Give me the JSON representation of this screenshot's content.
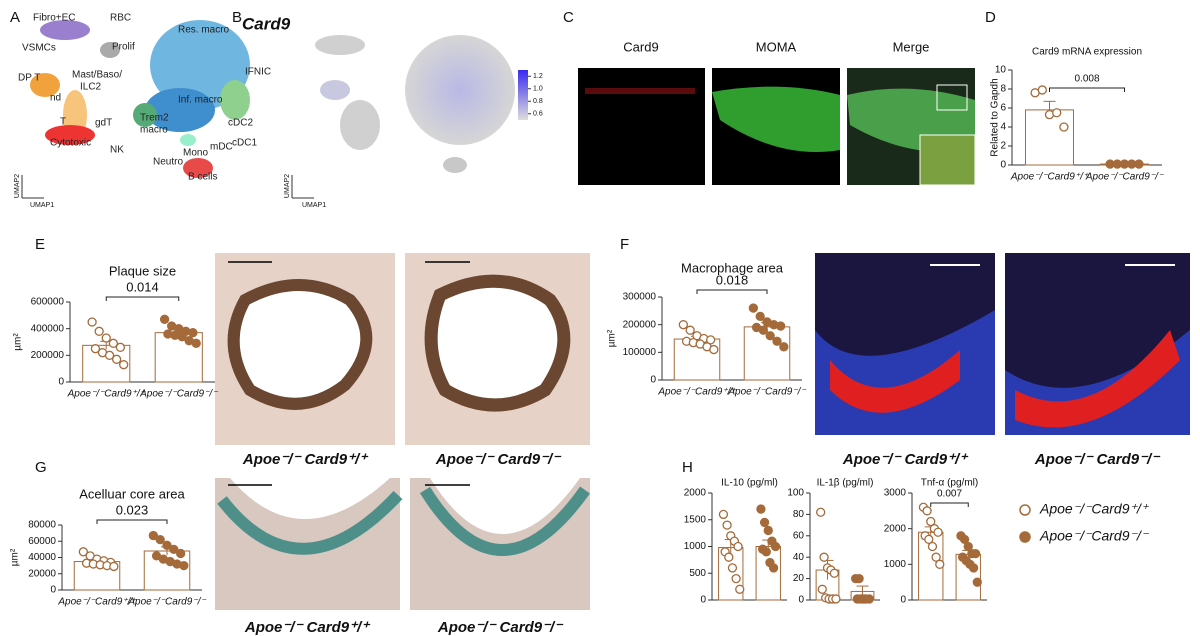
{
  "panels": {
    "A": {
      "letter": "A",
      "clusters": [
        "Fibro+EC",
        "VSMCs",
        "RBC",
        "Res. macro",
        "Prolif",
        "IFNIC",
        "DP T",
        "Mast/Baso/",
        "ILC2",
        "Inf. macro",
        "nd",
        "Trem2",
        "macro",
        "gdT",
        "cDC2",
        "T",
        "cDC1",
        "mDC",
        "Mono",
        "Neutro",
        "Cytotoxic",
        "NK",
        "B cells"
      ],
      "axis_x": "UMAP1",
      "axis_y": "UMAP2"
    },
    "B": {
      "letter": "B",
      "title": "Card9",
      "axis_x": "UMAP1",
      "axis_y": "UMAP2",
      "colorbar_lim": [
        0.5,
        1.3
      ],
      "colorbar_ticks": [
        1.2,
        {
          "value": 1,
          "label": "1.0"
        },
        0.8,
        0.6
      ]
    },
    "C": {
      "letter": "C",
      "channels": [
        "Card9",
        "MOMA",
        "Merge"
      ]
    },
    "D": {
      "letter": "D"
    },
    "E": {
      "letter": "E",
      "images": [
        "Apoe⁻/⁻ Card9⁺/⁺",
        "Apoe⁻/⁻ Card9⁻/⁻"
      ]
    },
    "F": {
      "letter": "F",
      "images": [
        "Apoe⁻/⁻ Card9⁺/⁺",
        "Apoe⁻/⁻ Card9⁻/⁻"
      ]
    },
    "G": {
      "letter": "G",
      "images": [
        "Apoe⁻/⁻ Card9⁺/⁺",
        "Apoe⁻/⁻ Card9⁻/⁻"
      ]
    },
    "H": {
      "letter": "H",
      "legend": [
        {
          "name": "Apoe⁻/⁻Card9⁺/⁺",
          "fill": "none",
          "color": "#a46a3a"
        },
        {
          "name": "Apoe⁻/⁻Card9⁻/⁻",
          "fill": "#a46a3a",
          "color": "#a46a3a"
        }
      ]
    }
  },
  "chart_data": [
    {
      "type": "bar",
      "title": "Card9 mRNA expression",
      "ylabel": "Related to Gapdh",
      "categories": [
        "Apoe⁻/⁻Card9⁺/⁺",
        "Apoe⁻/⁻Card9⁻/⁻"
      ],
      "color": "#a46a3a",
      "fills": [
        "none",
        "#a46a3a"
      ],
      "values": [
        5.8,
        0.1
      ],
      "errors": [
        0.9,
        0.05
      ],
      "points": [
        [
          7.6,
          7.9,
          5.3,
          5.5,
          4.0
        ],
        [
          0.1,
          0.1,
          0.1,
          0.1,
          0.1
        ]
      ],
      "pvalue": "0.008",
      "ylim": [
        0,
        10
      ],
      "yticks": [
        0,
        2,
        4,
        6,
        8,
        10
      ]
    },
    {
      "type": "bar",
      "title": "Plaque size",
      "ylabel": "µm²",
      "categories": [
        "Apoe⁻/⁻Card9⁺/⁺",
        "Apoe⁻/⁻Card9⁻/⁻"
      ],
      "color": "#a46a3a",
      "fills": [
        "none",
        "#a46a3a"
      ],
      "values": [
        275000,
        370000
      ],
      "errors": [
        30000,
        22000
      ],
      "points": [
        [
          450000,
          380000,
          330000,
          290000,
          260000,
          250000,
          220000,
          200000,
          170000,
          130000
        ],
        [
          470000,
          420000,
          400000,
          380000,
          370000,
          360000,
          350000,
          340000,
          310000,
          290000
        ]
      ],
      "pvalue": "0.014",
      "ylim": [
        0,
        600000
      ],
      "yticks": [
        0,
        200000,
        400000,
        600000
      ]
    },
    {
      "type": "bar",
      "title": "Macrophage area",
      "ylabel": "µm²",
      "categories": [
        "Apoe⁻/⁻Card9⁺/⁺",
        "Apoe⁻/⁻Card9⁻/⁻"
      ],
      "color": "#a46a3a",
      "fills": [
        "none",
        "#a46a3a"
      ],
      "values": [
        148000,
        192000
      ],
      "errors": [
        10000,
        15000
      ],
      "points": [
        [
          200000,
          180000,
          160000,
          150000,
          145000,
          140000,
          135000,
          130000,
          120000,
          110000
        ],
        [
          260000,
          230000,
          210000,
          200000,
          195000,
          190000,
          180000,
          160000,
          140000,
          120000
        ]
      ],
      "pvalue": "0.018",
      "ylim": [
        0,
        300000
      ],
      "yticks": [
        0,
        100000,
        200000,
        300000
      ]
    },
    {
      "type": "bar",
      "title": "Acelluar core area",
      "ylabel": "µm²",
      "categories": [
        "Apoe⁻/⁻Card9⁺/⁺",
        "Apoe⁻/⁻Card9⁻/⁻"
      ],
      "color": "#a46a3a",
      "fills": [
        "none",
        "#a46a3a"
      ],
      "values": [
        35000,
        48000
      ],
      "errors": [
        2000,
        5000
      ],
      "points": [
        [
          47000,
          42000,
          38000,
          36000,
          34000,
          33000,
          32000,
          31000,
          30000,
          29000
        ],
        [
          67000,
          62000,
          55000,
          50000,
          45000,
          42000,
          38000,
          35000,
          32000,
          30000
        ]
      ],
      "pvalue": "0.023",
      "ylim": [
        0,
        80000
      ],
      "yticks": [
        0,
        20000,
        40000,
        60000,
        80000
      ]
    },
    {
      "type": "bar",
      "title": "IL-10 (pg/ml)",
      "categories": [
        null,
        null
      ],
      "color": "#a46a3a",
      "fills": [
        "none",
        "#a46a3a"
      ],
      "values": [
        980,
        1000
      ],
      "errors": [
        150,
        120
      ],
      "points": [
        [
          1600,
          1400,
          1200,
          1100,
          1000,
          900,
          800,
          600,
          400,
          200
        ],
        [
          1700,
          1450,
          1300,
          1100,
          1000,
          950,
          900,
          700,
          600
        ]
      ],
      "ylim": [
        0,
        2000
      ],
      "yticks": [
        0,
        500,
        1000,
        1500,
        2000
      ]
    },
    {
      "type": "bar",
      "title": "IL-1β (pg/ml)",
      "categories": [
        null,
        null
      ],
      "color": "#a46a3a",
      "fills": [
        "none",
        "#a46a3a"
      ],
      "values": [
        28,
        8
      ],
      "errors": [
        9,
        5
      ],
      "points": [
        [
          82,
          40,
          30,
          28,
          25,
          10,
          2,
          1,
          1,
          1
        ],
        [
          20,
          20,
          1,
          1,
          1,
          1,
          1,
          1
        ]
      ],
      "ylim": [
        0,
        100
      ],
      "yticks": [
        0,
        20,
        40,
        60,
        80,
        100
      ]
    },
    {
      "type": "bar",
      "title": "Tnf-α (pg/ml)",
      "categories": [
        null,
        null
      ],
      "color": "#a46a3a",
      "fills": [
        "none",
        "#a46a3a"
      ],
      "values": [
        1900,
        1280
      ],
      "errors": [
        150,
        110
      ],
      "points": [
        [
          2600,
          2500,
          2200,
          2000,
          1900,
          1800,
          1700,
          1500,
          1200,
          1000
        ],
        [
          1800,
          1700,
          1500,
          1300,
          1300,
          1200,
          1100,
          1000,
          900,
          500
        ]
      ],
      "pvalue": "0.007",
      "ylim": [
        0,
        3000
      ],
      "yticks": [
        0,
        1000,
        2000,
        3000
      ]
    }
  ]
}
